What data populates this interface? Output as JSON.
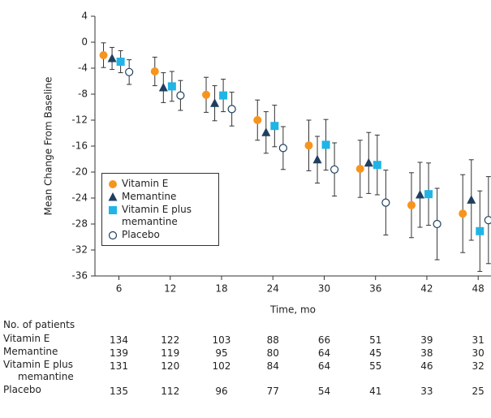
{
  "chart_data": {
    "type": "errorbar",
    "y_label": "Mean Change From Baseline",
    "x_label": "Time, mo",
    "xlim": [
      3.2,
      49.5
    ],
    "xticks": [
      6,
      12,
      18,
      24,
      30,
      36,
      42,
      48
    ],
    "ylim": [
      -36,
      4
    ],
    "yticks": [
      4,
      0,
      -4,
      -8,
      -12,
      -16,
      -20,
      -24,
      -28,
      -32,
      -36
    ],
    "legend": "lower-left",
    "series": [
      {
        "name": "Vitamin E",
        "color": "#f7941d",
        "marker": "circle",
        "x": [
          4.2,
          10.2,
          16.2,
          22.2,
          28.2,
          34.2,
          40.2,
          46.2
        ],
        "values": [
          -2.0,
          -4.5,
          -8.1,
          -12.0,
          -15.9,
          -19.5,
          -25.1,
          -26.4
        ],
        "errors": [
          1.9,
          2.2,
          2.7,
          3.1,
          3.9,
          4.4,
          5.0,
          6.0
        ]
      },
      {
        "name": "Memantine",
        "color": "#1f3f5f",
        "marker": "triangle",
        "x": [
          5.2,
          11.2,
          17.2,
          23.2,
          29.2,
          35.2,
          41.2,
          47.2
        ],
        "values": [
          -2.5,
          -7.0,
          -9.4,
          -13.9,
          -18.1,
          -18.6,
          -23.5,
          -24.3
        ],
        "errors": [
          1.7,
          2.3,
          2.7,
          3.2,
          3.6,
          4.7,
          5.0,
          6.2
        ]
      },
      {
        "name": "Vitamin E plus memantine",
        "color": "#1fb5e6",
        "marker": "square",
        "x": [
          6.2,
          12.2,
          18.2,
          24.2,
          30.2,
          36.2,
          42.2,
          48.2
        ],
        "values": [
          -3.0,
          -6.8,
          -8.2,
          -12.9,
          -15.8,
          -18.9,
          -23.4,
          -29.1
        ],
        "errors": [
          1.7,
          2.3,
          2.5,
          3.2,
          3.9,
          4.6,
          4.8,
          6.2
        ]
      },
      {
        "name": "Placebo",
        "color": "#1f3f5f",
        "marker": "open-circle",
        "x": [
          7.2,
          13.2,
          19.2,
          25.2,
          31.2,
          37.2,
          43.2,
          49.2
        ],
        "values": [
          -4.6,
          -8.2,
          -10.3,
          -16.3,
          -19.6,
          -24.7,
          -28.0,
          -27.4
        ],
        "errors": [
          1.9,
          2.3,
          2.6,
          3.3,
          4.1,
          5.0,
          5.5,
          6.7
        ]
      }
    ],
    "patients": {
      "title": "No. of patients",
      "rows": [
        {
          "name": "Vitamin E",
          "counts": [
            134,
            122,
            103,
            88,
            66,
            51,
            39,
            31
          ]
        },
        {
          "name": "Memantine",
          "counts": [
            139,
            119,
            95,
            80,
            64,
            45,
            38,
            30
          ]
        },
        {
          "name": "Vitamin E plus memantine",
          "counts": [
            131,
            120,
            102,
            84,
            64,
            55,
            46,
            32
          ]
        },
        {
          "name": "Placebo",
          "counts": [
            135,
            112,
            96,
            77,
            54,
            41,
            33,
            25
          ]
        }
      ]
    }
  }
}
